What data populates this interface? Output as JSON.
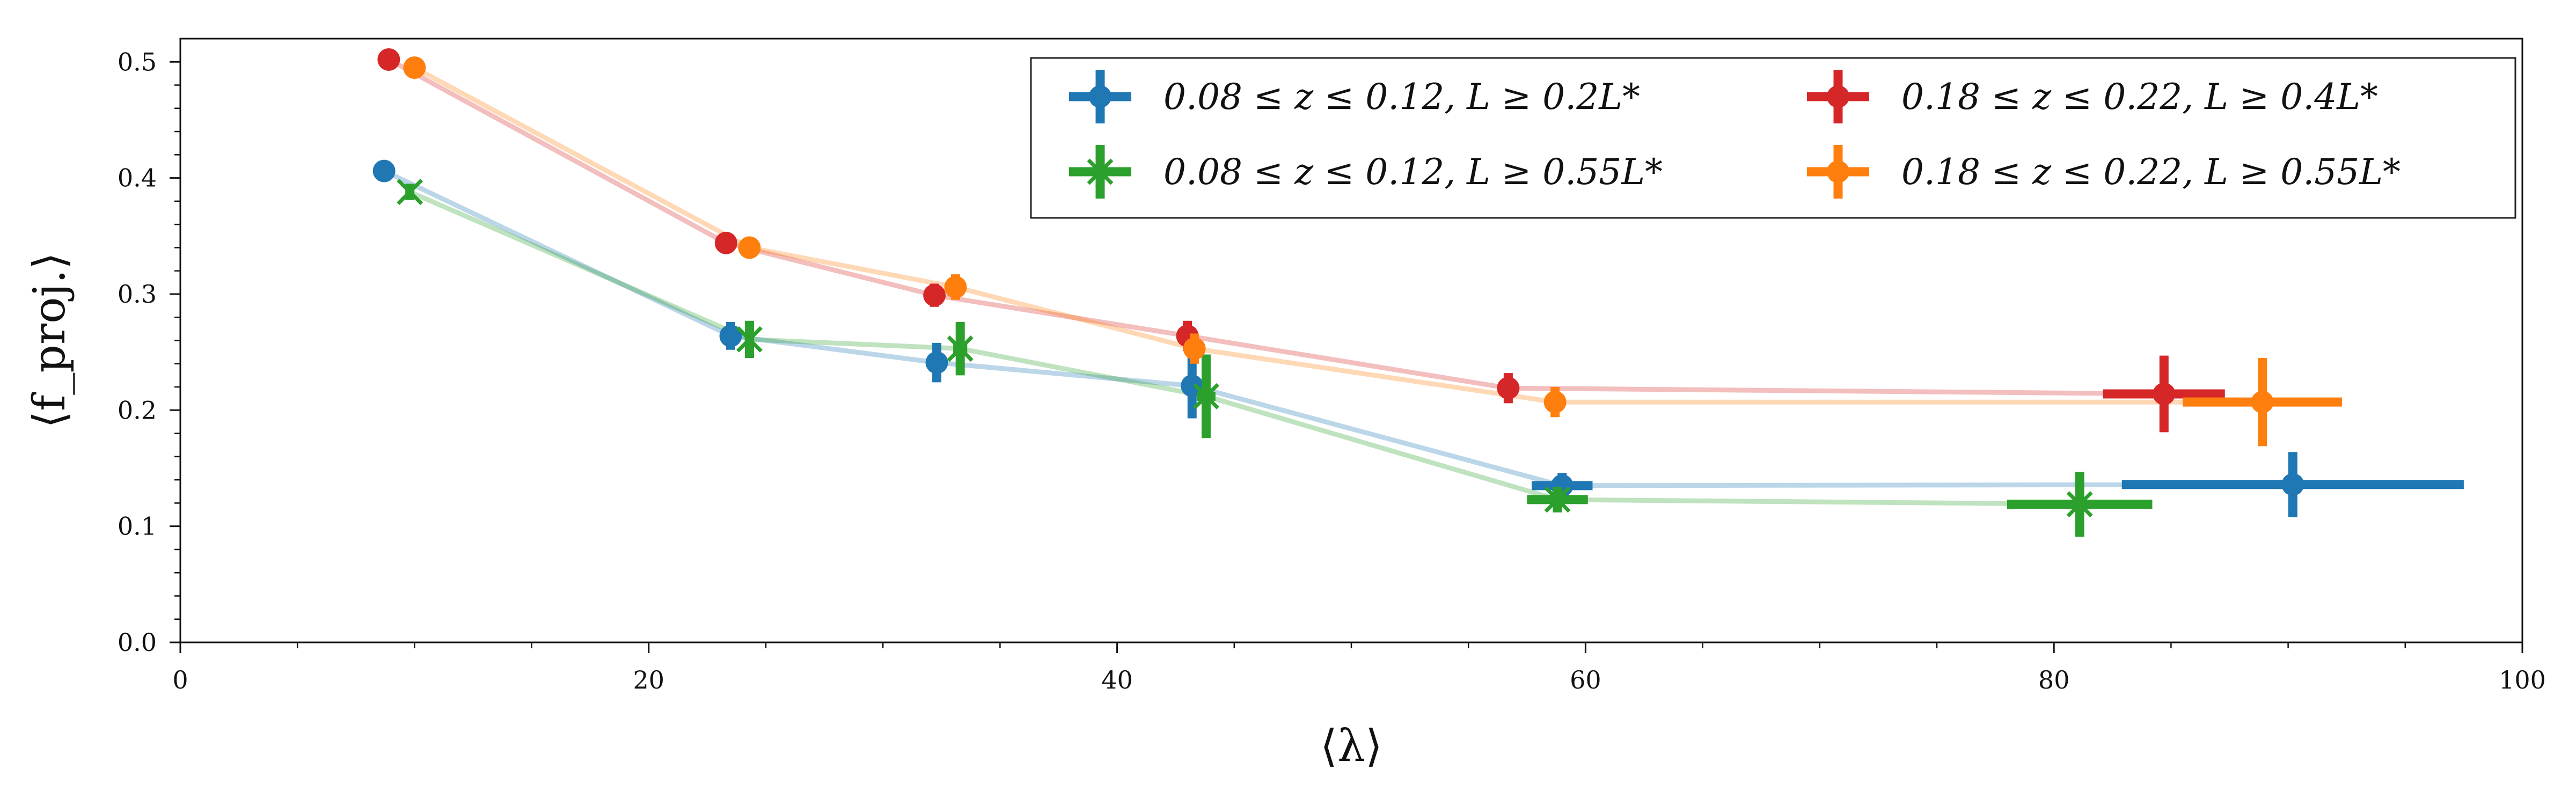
{
  "chart_data": {
    "type": "scatter",
    "title": "",
    "xlabel": "⟨λ⟩",
    "ylabel": "⟨f_proj.⟩",
    "xlim": [
      0,
      100
    ],
    "ylim": [
      0,
      0.52
    ],
    "x_ticks": [
      "0",
      "20",
      "40",
      "60",
      "80",
      "100"
    ],
    "y_ticks": [
      "0.0",
      "0.1",
      "0.2",
      "0.3",
      "0.4",
      "0.5"
    ],
    "grid": false,
    "legend_position": "top-right",
    "legend_columns": 2,
    "series": [
      {
        "name": "0.08 ≤ z ≤ 0.12, L ≥ 0.2L*",
        "color": "#1f77b4",
        "marker": "circle",
        "points": [
          {
            "x": 8.7,
            "y": 0.406,
            "xerr": 0.0,
            "yerr": 0.004
          },
          {
            "x": 23.5,
            "y": 0.264,
            "xerr": 0.2,
            "yerr": 0.012
          },
          {
            "x": 32.3,
            "y": 0.241,
            "xerr": 0.3,
            "yerr": 0.017
          },
          {
            "x": 43.2,
            "y": 0.221,
            "xerr": 0.3,
            "yerr": 0.028
          },
          {
            "x": 59.0,
            "y": 0.135,
            "xerr": 1.3,
            "yerr": 0.011
          },
          {
            "x": 90.2,
            "y": 0.136,
            "xerr": 7.3,
            "yerr": 0.028
          }
        ]
      },
      {
        "name": "0.08 ≤ z ≤ 0.12, L ≥ 0.55L*",
        "color": "#2ca02c",
        "marker": "x",
        "points": [
          {
            "x": 9.8,
            "y": 0.388,
            "xerr": 0.0,
            "yerr": 0.007
          },
          {
            "x": 24.3,
            "y": 0.261,
            "xerr": 0.2,
            "yerr": 0.016
          },
          {
            "x": 33.3,
            "y": 0.253,
            "xerr": 0.3,
            "yerr": 0.023
          },
          {
            "x": 43.8,
            "y": 0.212,
            "xerr": 0.4,
            "yerr": 0.036
          },
          {
            "x": 58.8,
            "y": 0.123,
            "xerr": 1.3,
            "yerr": 0.011
          },
          {
            "x": 81.1,
            "y": 0.119,
            "xerr": 3.1,
            "yerr": 0.028
          }
        ]
      },
      {
        "name": "0.18 ≤ z ≤ 0.22, L ≥ 0.4L*",
        "color": "#d62728",
        "marker": "circle",
        "points": [
          {
            "x": 8.9,
            "y": 0.502,
            "xerr": 0.0,
            "yerr": 0.003
          },
          {
            "x": 23.3,
            "y": 0.344,
            "xerr": 0.2,
            "yerr": 0.006
          },
          {
            "x": 32.2,
            "y": 0.299,
            "xerr": 0.2,
            "yerr": 0.01
          },
          {
            "x": 43.0,
            "y": 0.264,
            "xerr": 0.2,
            "yerr": 0.013
          },
          {
            "x": 56.7,
            "y": 0.219,
            "xerr": 0.3,
            "yerr": 0.013
          },
          {
            "x": 84.7,
            "y": 0.214,
            "xerr": 2.6,
            "yerr": 0.033
          }
        ]
      },
      {
        "name": "0.18 ≤ z ≤ 0.22, L ≥ 0.55L*",
        "color": "#ff7f0e",
        "marker": "circle",
        "points": [
          {
            "x": 10.0,
            "y": 0.495,
            "xerr": 0.0,
            "yerr": 0.004
          },
          {
            "x": 24.3,
            "y": 0.34,
            "xerr": 0.2,
            "yerr": 0.006
          },
          {
            "x": 33.1,
            "y": 0.306,
            "xerr": 0.2,
            "yerr": 0.011
          },
          {
            "x": 43.3,
            "y": 0.253,
            "xerr": 0.2,
            "yerr": 0.013
          },
          {
            "x": 58.7,
            "y": 0.207,
            "xerr": 0.4,
            "yerr": 0.013
          },
          {
            "x": 88.9,
            "y": 0.207,
            "xerr": 3.4,
            "yerr": 0.038
          }
        ]
      }
    ]
  }
}
